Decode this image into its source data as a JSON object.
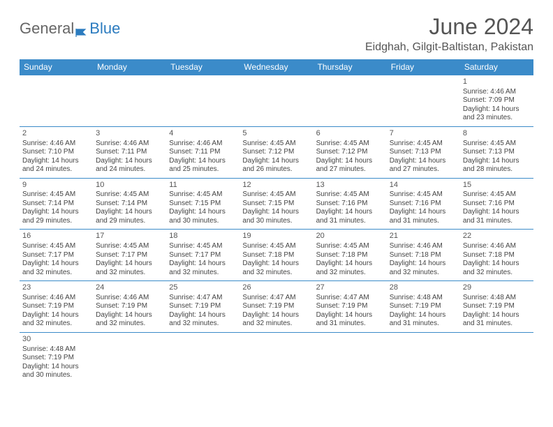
{
  "logo": {
    "general": "General",
    "blue": "Blue"
  },
  "title": "June 2024",
  "location": "Eidghah, Gilgit-Baltistan, Pakistan",
  "colors": {
    "header_bg": "#3b8bc9",
    "header_text": "#ffffff",
    "border": "#3b8bc9",
    "text": "#444444",
    "title_text": "#555555"
  },
  "dayHeaders": [
    "Sunday",
    "Monday",
    "Tuesday",
    "Wednesday",
    "Thursday",
    "Friday",
    "Saturday"
  ],
  "weeks": [
    [
      null,
      null,
      null,
      null,
      null,
      null,
      {
        "n": "1",
        "sr": "4:46 AM",
        "ss": "7:09 PM",
        "dl": "14 hours and 23 minutes."
      }
    ],
    [
      {
        "n": "2",
        "sr": "4:46 AM",
        "ss": "7:10 PM",
        "dl": "14 hours and 24 minutes."
      },
      {
        "n": "3",
        "sr": "4:46 AM",
        "ss": "7:11 PM",
        "dl": "14 hours and 24 minutes."
      },
      {
        "n": "4",
        "sr": "4:46 AM",
        "ss": "7:11 PM",
        "dl": "14 hours and 25 minutes."
      },
      {
        "n": "5",
        "sr": "4:45 AM",
        "ss": "7:12 PM",
        "dl": "14 hours and 26 minutes."
      },
      {
        "n": "6",
        "sr": "4:45 AM",
        "ss": "7:12 PM",
        "dl": "14 hours and 27 minutes."
      },
      {
        "n": "7",
        "sr": "4:45 AM",
        "ss": "7:13 PM",
        "dl": "14 hours and 27 minutes."
      },
      {
        "n": "8",
        "sr": "4:45 AM",
        "ss": "7:13 PM",
        "dl": "14 hours and 28 minutes."
      }
    ],
    [
      {
        "n": "9",
        "sr": "4:45 AM",
        "ss": "7:14 PM",
        "dl": "14 hours and 29 minutes."
      },
      {
        "n": "10",
        "sr": "4:45 AM",
        "ss": "7:14 PM",
        "dl": "14 hours and 29 minutes."
      },
      {
        "n": "11",
        "sr": "4:45 AM",
        "ss": "7:15 PM",
        "dl": "14 hours and 30 minutes."
      },
      {
        "n": "12",
        "sr": "4:45 AM",
        "ss": "7:15 PM",
        "dl": "14 hours and 30 minutes."
      },
      {
        "n": "13",
        "sr": "4:45 AM",
        "ss": "7:16 PM",
        "dl": "14 hours and 31 minutes."
      },
      {
        "n": "14",
        "sr": "4:45 AM",
        "ss": "7:16 PM",
        "dl": "14 hours and 31 minutes."
      },
      {
        "n": "15",
        "sr": "4:45 AM",
        "ss": "7:16 PM",
        "dl": "14 hours and 31 minutes."
      }
    ],
    [
      {
        "n": "16",
        "sr": "4:45 AM",
        "ss": "7:17 PM",
        "dl": "14 hours and 32 minutes."
      },
      {
        "n": "17",
        "sr": "4:45 AM",
        "ss": "7:17 PM",
        "dl": "14 hours and 32 minutes."
      },
      {
        "n": "18",
        "sr": "4:45 AM",
        "ss": "7:17 PM",
        "dl": "14 hours and 32 minutes."
      },
      {
        "n": "19",
        "sr": "4:45 AM",
        "ss": "7:18 PM",
        "dl": "14 hours and 32 minutes."
      },
      {
        "n": "20",
        "sr": "4:45 AM",
        "ss": "7:18 PM",
        "dl": "14 hours and 32 minutes."
      },
      {
        "n": "21",
        "sr": "4:46 AM",
        "ss": "7:18 PM",
        "dl": "14 hours and 32 minutes."
      },
      {
        "n": "22",
        "sr": "4:46 AM",
        "ss": "7:18 PM",
        "dl": "14 hours and 32 minutes."
      }
    ],
    [
      {
        "n": "23",
        "sr": "4:46 AM",
        "ss": "7:19 PM",
        "dl": "14 hours and 32 minutes."
      },
      {
        "n": "24",
        "sr": "4:46 AM",
        "ss": "7:19 PM",
        "dl": "14 hours and 32 minutes."
      },
      {
        "n": "25",
        "sr": "4:47 AM",
        "ss": "7:19 PM",
        "dl": "14 hours and 32 minutes."
      },
      {
        "n": "26",
        "sr": "4:47 AM",
        "ss": "7:19 PM",
        "dl": "14 hours and 32 minutes."
      },
      {
        "n": "27",
        "sr": "4:47 AM",
        "ss": "7:19 PM",
        "dl": "14 hours and 31 minutes."
      },
      {
        "n": "28",
        "sr": "4:48 AM",
        "ss": "7:19 PM",
        "dl": "14 hours and 31 minutes."
      },
      {
        "n": "29",
        "sr": "4:48 AM",
        "ss": "7:19 PM",
        "dl": "14 hours and 31 minutes."
      }
    ],
    [
      {
        "n": "30",
        "sr": "4:48 AM",
        "ss": "7:19 PM",
        "dl": "14 hours and 30 minutes."
      },
      null,
      null,
      null,
      null,
      null,
      null
    ]
  ],
  "labels": {
    "sunrise": "Sunrise:",
    "sunset": "Sunset:",
    "daylight": "Daylight:"
  }
}
